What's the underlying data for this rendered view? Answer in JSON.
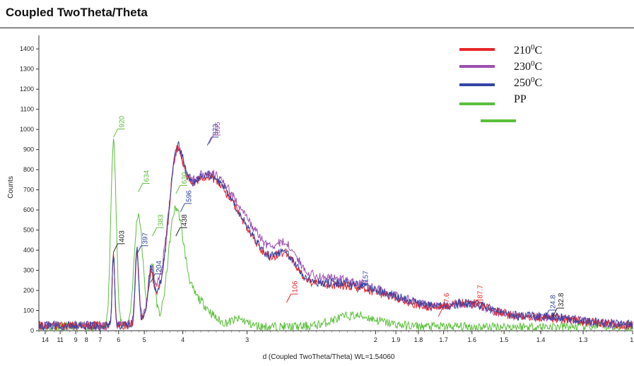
{
  "header": {
    "title": "Coupled TwoTheta/Theta"
  },
  "chart_data": {
    "type": "line",
    "xlabel": "d (Coupled TwoTheta/Theta) WL=1.54060",
    "ylabel": "Counts",
    "ylim": [
      0,
      1450
    ],
    "x_scale": "reciprocal (linear in 2θ)",
    "xlim": [
      15.8,
      1.2
    ],
    "x_ticks": [
      {
        "d": 14,
        "label": "14"
      },
      {
        "d": 11,
        "label": "11"
      },
      {
        "d": 9,
        "label": "9"
      },
      {
        "d": 8,
        "label": "8"
      },
      {
        "d": 7,
        "label": "7"
      },
      {
        "d": 6,
        "label": "6"
      },
      {
        "d": 5,
        "label": "5"
      },
      {
        "d": 4,
        "label": "4"
      },
      {
        "d": 3,
        "label": "3"
      },
      {
        "d": 2,
        "label": "2"
      },
      {
        "d": 1.9,
        "label": "1.9"
      },
      {
        "d": 1.8,
        "label": "1.8"
      },
      {
        "d": 1.7,
        "label": "1.7"
      },
      {
        "d": 1.6,
        "label": "1.6"
      },
      {
        "d": 1.5,
        "label": "1.5"
      },
      {
        "d": 1.4,
        "label": "1.4"
      },
      {
        "d": 1.3,
        "label": "1.3"
      },
      {
        "d": 1.2,
        "label": "1."
      }
    ],
    "y_ticks": [
      0,
      100,
      200,
      300,
      400,
      500,
      600,
      700,
      800,
      900,
      1000,
      1100,
      1200,
      1300,
      1400
    ],
    "legend": {
      "placement": "top-right",
      "entries": [
        {
          "label_main": "210",
          "label_sup": "0",
          "label_unit": "C",
          "color": "#e8262a"
        },
        {
          "label_main": "230",
          "label_sup": "0",
          "label_unit": "C",
          "color": "#9b4fb0"
        },
        {
          "label_main": "250",
          "label_sup": "0",
          "label_unit": "C",
          "color": "#3545a5"
        },
        {
          "label_main": "PP",
          "label_sup": "",
          "label_unit": "",
          "color": "#5bbf3a"
        },
        {
          "label_main": "",
          "label_sup": "",
          "label_unit": "",
          "color": "#5bbf3a"
        }
      ]
    },
    "series": [
      {
        "color": "#5bbf3a",
        "baseline": 20,
        "peaks": [
          {
            "d": 6.25,
            "height": 920,
            "width": 0.55
          },
          {
            "d": 5.2,
            "height": 560,
            "width": 0.6
          },
          {
            "d": 4.75,
            "height": 300,
            "width": 0.35
          },
          {
            "d": 4.15,
            "height": 580,
            "width": 0.7
          },
          {
            "d": 3.7,
            "height": 120,
            "width": 0.8
          },
          {
            "d": 3.1,
            "height": 35,
            "width": 0.4
          },
          {
            "d": 2.12,
            "height": 55,
            "width": 0.5
          }
        ]
      },
      {
        "color": "#9b4fb0",
        "baseline": 25,
        "peaks": [
          {
            "d": 6.25,
            "height": 340,
            "width": 0.25
          },
          {
            "d": 5.25,
            "height": 350,
            "width": 0.25
          },
          {
            "d": 4.8,
            "height": 170,
            "width": 0.3
          },
          {
            "d": 4.15,
            "height": 360,
            "width": 0.6
          },
          {
            "d": 3.55,
            "height": 760,
            "width": 2.6
          },
          {
            "d": 2.6,
            "height": 110,
            "width": 0.35
          },
          {
            "d": 2.1,
            "height": 150,
            "width": 1.2
          },
          {
            "d": 1.6,
            "height": 60,
            "width": 0.3
          },
          {
            "d": 1.38,
            "height": 30,
            "width": 0.3
          }
        ]
      },
      {
        "color": "#e8262a",
        "baseline": 25,
        "peaks": [
          {
            "d": 6.25,
            "height": 360,
            "width": 0.25
          },
          {
            "d": 5.25,
            "height": 360,
            "width": 0.25
          },
          {
            "d": 4.8,
            "height": 180,
            "width": 0.3
          },
          {
            "d": 4.15,
            "height": 420,
            "width": 0.6
          },
          {
            "d": 3.55,
            "height": 740,
            "width": 2.4
          },
          {
            "d": 2.6,
            "height": 110,
            "width": 0.35
          },
          {
            "d": 2.1,
            "height": 150,
            "width": 1.2
          },
          {
            "d": 1.6,
            "height": 70,
            "width": 0.3
          },
          {
            "d": 1.38,
            "height": 30,
            "width": 0.3
          }
        ]
      },
      {
        "color": "#3545a5",
        "baseline": 25,
        "peaks": [
          {
            "d": 6.25,
            "height": 370,
            "width": 0.25
          },
          {
            "d": 5.25,
            "height": 380,
            "width": 0.25
          },
          {
            "d": 4.8,
            "height": 200,
            "width": 0.3
          },
          {
            "d": 4.15,
            "height": 430,
            "width": 0.6
          },
          {
            "d": 3.55,
            "height": 750,
            "width": 2.4
          },
          {
            "d": 2.6,
            "height": 105,
            "width": 0.35
          },
          {
            "d": 2.1,
            "height": 160,
            "width": 1.2
          },
          {
            "d": 1.6,
            "height": 65,
            "width": 0.3
          },
          {
            "d": 1.38,
            "height": 35,
            "width": 0.3
          }
        ]
      }
    ],
    "peak_labels": [
      {
        "d": 6.25,
        "y": 960,
        "text": "920",
        "color": "#5bbf3a"
      },
      {
        "d": 5.2,
        "y": 690,
        "text": "634",
        "color": "#5bbf3a"
      },
      {
        "d": 4.75,
        "y": 470,
        "text": "383",
        "color": "#5bbf3a"
      },
      {
        "d": 4.15,
        "y": 680,
        "text": "630",
        "color": "#5bbf3a"
      },
      {
        "d": 6.25,
        "y": 390,
        "text": "403",
        "color": "#222222"
      },
      {
        "d": 5.25,
        "y": 380,
        "text": "397",
        "color": "#3545a5"
      },
      {
        "d": 4.8,
        "y": 240,
        "text": "204",
        "color": "#3545a5"
      },
      {
        "d": 4.15,
        "y": 470,
        "text": "438",
        "color": "#222222"
      },
      {
        "d": 4.05,
        "y": 590,
        "text": "596",
        "color": "#3545a5"
      },
      {
        "d": 3.55,
        "y": 920,
        "text": "873",
        "color": "#3545a5"
      },
      {
        "d": 3.52,
        "y": 930,
        "text": "895",
        "color": "#9b4fb0"
      },
      {
        "d": 2.6,
        "y": 140,
        "text": "106",
        "color": "#e8262a"
      },
      {
        "d": 2.1,
        "y": 190,
        "text": "157",
        "color": "#3545a5"
      },
      {
        "d": 1.72,
        "y": 70,
        "text": "37.6",
        "color": "#e8262a"
      },
      {
        "d": 1.6,
        "y": 110,
        "text": "87.7",
        "color": "#e8262a"
      },
      {
        "d": 1.39,
        "y": 60,
        "text": "24.8",
        "color": "#3545a5"
      },
      {
        "d": 1.37,
        "y": 70,
        "text": "32.8",
        "color": "#222222"
      }
    ]
  }
}
